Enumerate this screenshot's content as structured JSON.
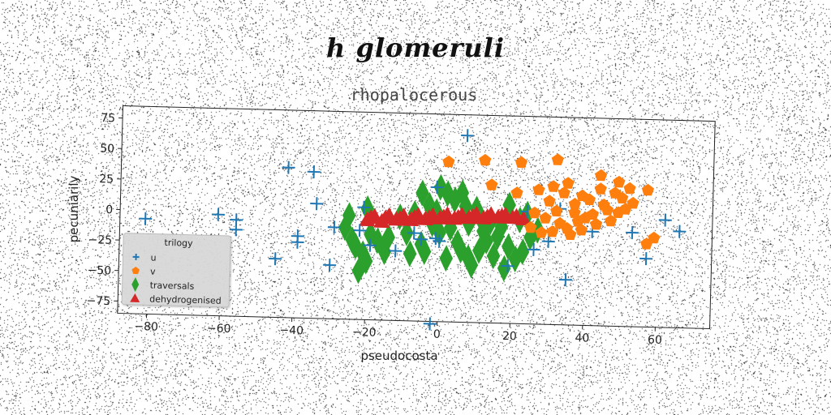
{
  "suptitle": "h glomeruli",
  "chart_data": {
    "type": "scatter",
    "title": "rhopalocerous",
    "xlabel": "pseudocosta",
    "ylabel": "pecuniarily",
    "xlim": [
      -88,
      75
    ],
    "ylim": [
      -85,
      85
    ],
    "x_ticks": [
      -80,
      -60,
      -40,
      -20,
      0,
      20,
      40,
      60
    ],
    "x_tick_labels": [
      "−80",
      "−60",
      "−40",
      "−20",
      "0",
      "20",
      "40",
      "60"
    ],
    "y_ticks": [
      75,
      50,
      25,
      0,
      -25,
      -50,
      -75
    ],
    "y_tick_labels": [
      "75",
      "50",
      "25",
      "0",
      "−25",
      "−50",
      "−75"
    ],
    "grid": false,
    "legend": {
      "title": "trilogy",
      "placement": "lower-left"
    },
    "series": [
      {
        "name": "u",
        "marker": "plus",
        "color": "#1f77b4",
        "points": [
          [
            7,
            68
          ],
          [
            -42,
            38
          ],
          [
            -35,
            35
          ],
          [
            -1,
            25
          ],
          [
            -34,
            9
          ],
          [
            -21,
            7
          ],
          [
            -81,
            -7
          ],
          [
            -61,
            -2
          ],
          [
            -56,
            -6
          ],
          [
            -56,
            -14
          ],
          [
            -29,
            -10
          ],
          [
            -39,
            -18
          ],
          [
            -39,
            -23
          ],
          [
            -22,
            -12
          ],
          [
            -19,
            -24
          ],
          [
            -12,
            -28
          ],
          [
            -7,
            -13
          ],
          [
            -5,
            -18
          ],
          [
            -1,
            -17
          ],
          [
            0,
            -19
          ],
          [
            -45,
            -37
          ],
          [
            -30,
            -41
          ],
          [
            19,
            -38
          ],
          [
            26,
            -24
          ],
          [
            30,
            -17
          ],
          [
            42,
            -8
          ],
          [
            53,
            -8
          ],
          [
            57,
            -29
          ],
          [
            62,
            3
          ],
          [
            66,
            -6
          ],
          [
            35,
            -48
          ],
          [
            -2,
            -87
          ],
          [
            24,
            7
          ],
          [
            33,
            10
          ]
        ]
      },
      {
        "name": "v",
        "marker": "pentagon",
        "color": "#ff7f0e",
        "points": [
          [
            2,
            46
          ],
          [
            12,
            48
          ],
          [
            22,
            47
          ],
          [
            32,
            50
          ],
          [
            14,
            28
          ],
          [
            21,
            22
          ],
          [
            27,
            25
          ],
          [
            31,
            28
          ],
          [
            35,
            31
          ],
          [
            39,
            21
          ],
          [
            44,
            27
          ],
          [
            48,
            24
          ],
          [
            52,
            28
          ],
          [
            57,
            27
          ],
          [
            34,
            23
          ],
          [
            37,
            14
          ],
          [
            41,
            18
          ],
          [
            45,
            14
          ],
          [
            50,
            20
          ],
          [
            53,
            16
          ],
          [
            32,
            8
          ],
          [
            37,
            7
          ],
          [
            42,
            6
          ],
          [
            46,
            10
          ],
          [
            49,
            8
          ],
          [
            38,
            0
          ],
          [
            43,
            -2
          ],
          [
            29,
            2
          ],
          [
            33,
            -2
          ],
          [
            35,
            -6
          ],
          [
            31,
            -9
          ],
          [
            36,
            -11
          ],
          [
            39,
            -7
          ],
          [
            25,
            -6
          ],
          [
            28,
            -10
          ],
          [
            59,
            -12
          ],
          [
            57,
            -17
          ],
          [
            44,
            38
          ],
          [
            49,
            33
          ],
          [
            51,
            11
          ],
          [
            40,
            3
          ],
          [
            47,
            1
          ],
          [
            30,
            16
          ],
          [
            26,
            6
          ]
        ]
      },
      {
        "name": "traversals",
        "marker": "diamond",
        "color": "#2ca02c",
        "points": [
          [
            -25,
            0
          ],
          [
            -26,
            -10
          ],
          [
            -23,
            -25
          ],
          [
            -21,
            -31
          ],
          [
            -22,
            -45
          ],
          [
            -20,
            -37
          ],
          [
            -19,
            -15
          ],
          [
            -17,
            -20
          ],
          [
            -14,
            -17
          ],
          [
            -15,
            -29
          ],
          [
            -9,
            -13
          ],
          [
            -8,
            -30
          ],
          [
            -5,
            -22
          ],
          [
            -4,
            -28
          ],
          [
            -2,
            -5
          ],
          [
            -1,
            5
          ],
          [
            -3,
            10
          ],
          [
            -5,
            20
          ],
          [
            0,
            25
          ],
          [
            2,
            20
          ],
          [
            4,
            15
          ],
          [
            6,
            21
          ],
          [
            3,
            -8
          ],
          [
            5,
            -20
          ],
          [
            6,
            -26
          ],
          [
            8,
            -32
          ],
          [
            9,
            -38
          ],
          [
            11,
            -26
          ],
          [
            13,
            -18
          ],
          [
            12,
            -10
          ],
          [
            14,
            -2
          ],
          [
            16,
            -14
          ],
          [
            17,
            -6
          ],
          [
            19,
            -22
          ],
          [
            21,
            -32
          ],
          [
            23,
            -26
          ],
          [
            25,
            -14
          ],
          [
            22,
            0
          ],
          [
            24,
            5
          ],
          [
            19,
            12
          ],
          [
            10,
            8
          ],
          [
            8,
            -4
          ],
          [
            0,
            -12
          ],
          [
            -11,
            0
          ],
          [
            -20,
            6
          ],
          [
            -24,
            -20
          ],
          [
            18,
            -40
          ],
          [
            2,
            -33
          ],
          [
            15,
            -30
          ],
          [
            11,
            2
          ],
          [
            -7,
            3
          ],
          [
            27,
            -8
          ],
          [
            7,
            10
          ]
        ]
      },
      {
        "name": "dehydrogenised",
        "marker": "triangle",
        "color": "#d62728",
        "points": [
          [
            -20,
            -3
          ],
          [
            -16,
            -4
          ],
          [
            -12,
            -2
          ],
          [
            -8,
            -2
          ],
          [
            -4,
            -1
          ],
          [
            0,
            0
          ],
          [
            4,
            0
          ],
          [
            8,
            1
          ],
          [
            12,
            1
          ],
          [
            16,
            2
          ],
          [
            20,
            2
          ],
          [
            23,
            1
          ],
          [
            -18,
            0
          ],
          [
            -14,
            1
          ],
          [
            -10,
            1
          ],
          [
            -6,
            2
          ],
          [
            -2,
            2
          ],
          [
            2,
            3
          ],
          [
            6,
            3
          ],
          [
            10,
            4
          ],
          [
            14,
            4
          ],
          [
            18,
            4
          ],
          [
            21,
            3
          ],
          [
            -19,
            -1
          ],
          [
            -15,
            -1
          ],
          [
            -11,
            -1
          ],
          [
            -7,
            0
          ],
          [
            -3,
            0
          ],
          [
            1,
            1
          ],
          [
            5,
            1
          ],
          [
            9,
            2
          ],
          [
            13,
            2
          ],
          [
            17,
            3
          ]
        ]
      }
    ]
  }
}
